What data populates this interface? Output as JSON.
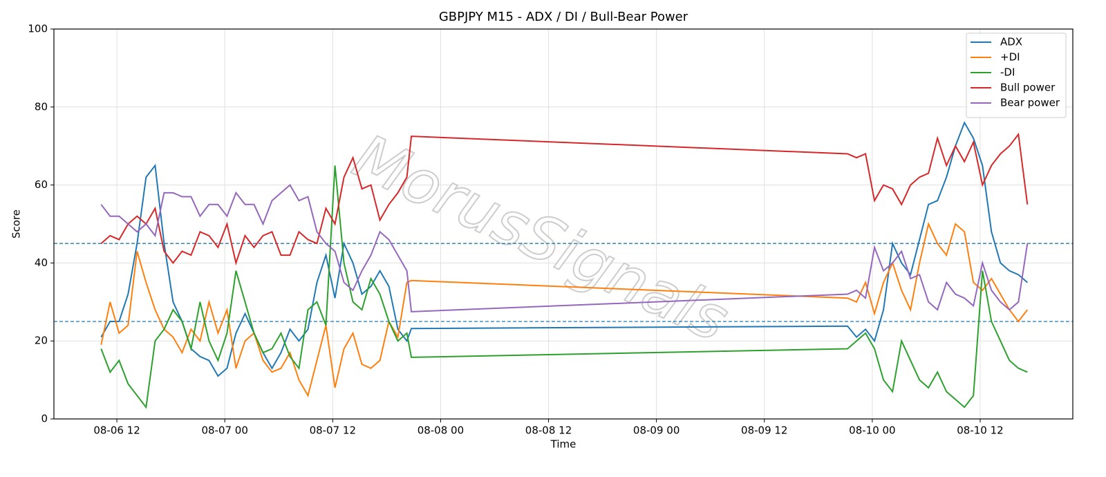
{
  "chart_data": {
    "type": "line",
    "title": "GBPJPY M15 - ADX / DI / Bull-Bear Power",
    "xlabel": "Time",
    "ylabel": "Score",
    "watermark": "MorusSignals",
    "x": [
      "08-06 10:15",
      "08-06 11:15",
      "08-06 12:15",
      "08-06 13:15",
      "08-06 14:15",
      "08-06 15:15",
      "08-06 16:15",
      "08-06 17:15",
      "08-06 18:15",
      "08-06 19:15",
      "08-06 20:15",
      "08-06 21:15",
      "08-06 22:15",
      "08-06 23:15",
      "08-07 00:15",
      "08-07 01:15",
      "08-07 02:15",
      "08-07 03:15",
      "08-07 04:15",
      "08-07 05:15",
      "08-07 06:15",
      "08-07 07:15",
      "08-07 08:15",
      "08-07 09:15",
      "08-07 10:15",
      "08-07 11:15",
      "08-07 12:15",
      "08-07 13:15",
      "08-07 14:15",
      "08-07 15:15",
      "08-07 16:15",
      "08-07 17:15",
      "08-07 18:15",
      "08-07 19:15",
      "08-07 20:15",
      "08-07 20:45",
      "08-09 21:15",
      "08-09 22:15",
      "08-09 23:15",
      "08-10 00:15",
      "08-10 01:15",
      "08-10 02:15",
      "08-10 03:15",
      "08-10 04:15",
      "08-10 05:15",
      "08-10 06:15",
      "08-10 07:15",
      "08-10 08:15",
      "08-10 09:15",
      "08-10 10:15",
      "08-10 11:15",
      "08-10 12:15",
      "08-10 13:15",
      "08-10 14:15",
      "08-10 15:15",
      "08-10 16:15",
      "08-10 17:15"
    ],
    "series": [
      {
        "name": "ADX",
        "color": "#1f77b4",
        "values": [
          21,
          25,
          25,
          32,
          45,
          62,
          65,
          45,
          30,
          25,
          18,
          16,
          15,
          11,
          13,
          22,
          27,
          22,
          17,
          13,
          17,
          23,
          20,
          23,
          35,
          42,
          31,
          45,
          40,
          32,
          34,
          38,
          34,
          23,
          20,
          23.2,
          23.8,
          21,
          23,
          20,
          28,
          45,
          40,
          37,
          46,
          55,
          56,
          62,
          70,
          76,
          72,
          65,
          48,
          40,
          38,
          37,
          35
        ]
      },
      {
        "name": "+DI",
        "color": "#ff7f0e",
        "values": [
          19,
          30,
          22,
          24,
          43,
          35,
          28,
          23,
          21,
          17,
          23,
          20,
          30,
          22,
          28,
          13,
          20,
          22,
          15,
          12,
          13,
          17,
          10,
          6,
          15,
          24,
          8,
          18,
          22,
          14,
          13,
          15,
          25,
          21,
          35,
          35.5,
          31,
          30,
          35,
          27,
          35,
          40,
          33,
          28,
          40,
          50,
          45,
          42,
          50,
          48,
          35,
          33,
          36,
          32,
          28,
          25,
          28
        ]
      },
      {
        "name": "-DI",
        "color": "#2ca02c",
        "values": [
          18,
          12,
          15,
          9,
          6,
          3,
          20,
          23,
          28,
          25,
          18,
          30,
          20,
          15,
          22,
          38,
          30,
          22,
          17,
          18,
          22,
          16,
          13,
          28,
          30,
          24,
          65,
          40,
          30,
          28,
          36,
          32,
          25,
          20,
          22,
          15.8,
          18,
          20,
          22,
          18,
          10,
          7,
          20,
          15,
          10,
          8,
          12,
          7,
          5,
          3,
          6,
          38,
          25,
          20,
          15,
          13,
          12
        ]
      },
      {
        "name": "Bull power",
        "color": "#d62728",
        "values": [
          45,
          47,
          46,
          50,
          52,
          50,
          54,
          43,
          40,
          43,
          42,
          48,
          47,
          44,
          50,
          40,
          47,
          44,
          47,
          48,
          42,
          42,
          48,
          46,
          45,
          54,
          50,
          62,
          67,
          59,
          60,
          51,
          55,
          58,
          62,
          72.5,
          68,
          67,
          68,
          56,
          60,
          59,
          55,
          60,
          62,
          63,
          72,
          65,
          70,
          66,
          71,
          60,
          65,
          68,
          70,
          73,
          55
        ]
      },
      {
        "name": "Bear power",
        "color": "#9467bd",
        "values": [
          55,
          52,
          52,
          50,
          48,
          50,
          47,
          58,
          58,
          57,
          57,
          52,
          55,
          55,
          52,
          58,
          55,
          55,
          50,
          56,
          58,
          60,
          56,
          57,
          48,
          45,
          43,
          35,
          33,
          38,
          42,
          48,
          46,
          42,
          38,
          27.5,
          32,
          33,
          31,
          44,
          38,
          40,
          43,
          36,
          37,
          30,
          28,
          35,
          32,
          31,
          29,
          40,
          33,
          30,
          28,
          30,
          45
        ]
      }
    ],
    "xlim": [
      "08-06 05:00",
      "08-10 22:18"
    ],
    "xticks": [
      "08-06 12",
      "08-07 00",
      "08-07 12",
      "08-08 00",
      "08-08 12",
      "08-09 00",
      "08-09 12",
      "08-10 00",
      "08-10 12"
    ],
    "ylim": [
      0,
      100
    ],
    "yticks": [
      0,
      20,
      40,
      60,
      80,
      100
    ],
    "hlines": [
      {
        "value": 25,
        "color": "#1f77b4"
      },
      {
        "value": 45,
        "color": "#1f77b4"
      }
    ],
    "grid": true,
    "legend": "upper right"
  }
}
